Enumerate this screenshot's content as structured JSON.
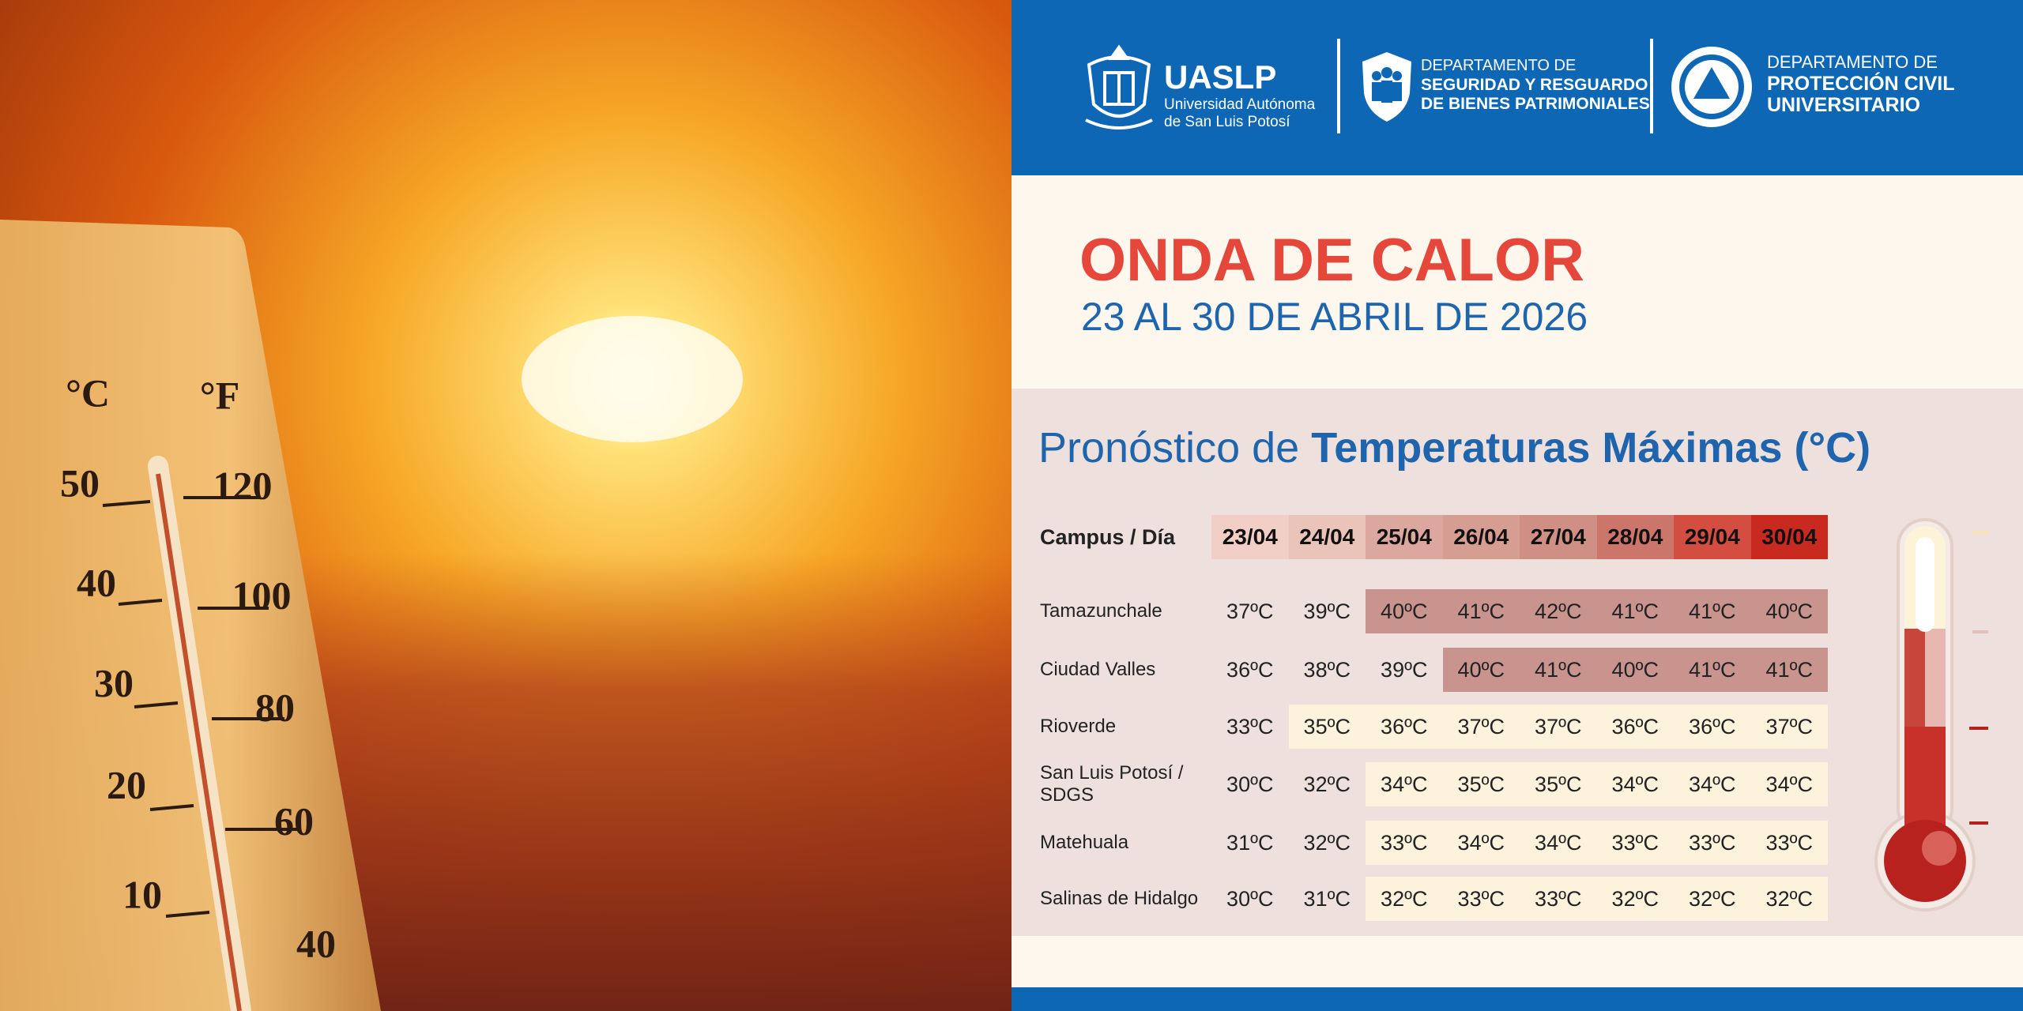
{
  "photo": {
    "thermometer": {
      "celsius_unit": "°C",
      "fahrenheit_unit": "°F",
      "celsius_labels": [
        "50",
        "40",
        "30",
        "20",
        "10"
      ],
      "fahrenheit_labels": [
        "120",
        "100",
        "80",
        "60",
        "40"
      ]
    }
  },
  "header": {
    "uaslp": {
      "name": "UASLP",
      "line1": "Universidad Autónoma",
      "line2": "de San Luis Potosí"
    },
    "seguridad": {
      "line1": "DEPARTAMENTO DE",
      "line2": "SEGURIDAD Y RESGUARDO",
      "line3": "DE BIENES PATRIMONIALES"
    },
    "proteccion": {
      "line1": "DEPARTAMENTO DE",
      "line2": "PROTECCIÓN CIVIL",
      "line3": "UNIVERSITARIO"
    }
  },
  "title": "ONDA DE CALOR",
  "subtitle": "23 AL 30 DE ABRIL DE 2026",
  "table": {
    "heading_plain": "Pronóstico de",
    "heading_bold": "Temperaturas Máximas (°C)",
    "corner": "Campus / Día",
    "columns": [
      "23/04",
      "24/04",
      "25/04",
      "26/04",
      "27/04",
      "28/04",
      "29/04",
      "30/04"
    ],
    "column_colors": [
      "#f1cfc6",
      "#eac3b9",
      "#dca79e",
      "#d69d93",
      "#cf8f85",
      "#cb756b",
      "#d44d41",
      "#c92a20"
    ],
    "rows": [
      {
        "campus": "Tamazunchale",
        "cells": [
          "37ºC",
          "39ºC",
          "40ºC",
          "41ºC",
          "42ºC",
          "41ºC",
          "41ºC",
          "40ºC"
        ],
        "colors": [
          null,
          null,
          "#c8948d",
          "#c8948d",
          "#c8948d",
          "#c8948d",
          "#c8948d",
          "#c8948d"
        ]
      },
      {
        "campus": "Ciudad Valles",
        "cells": [
          "36ºC",
          "38ºC",
          "39ºC",
          "40ºC",
          "41ºC",
          "40ºC",
          "41ºC",
          "41ºC"
        ],
        "colors": [
          null,
          null,
          null,
          "#c8948d",
          "#c8948d",
          "#c8948d",
          "#c8948d",
          "#c8948d"
        ]
      },
      {
        "campus": "Rioverde",
        "cells": [
          "33ºC",
          "35ºC",
          "36ºC",
          "37ºC",
          "37ºC",
          "36ºC",
          "36ºC",
          "37ºC"
        ],
        "colors": [
          null,
          "#fdf2dc",
          "#fdf2dc",
          "#fdf2dc",
          "#fdf2dc",
          "#fdf2dc",
          "#fdf2dc",
          "#fdf2dc"
        ]
      },
      {
        "campus": "San Luis Potosí / SDGS",
        "cells": [
          "30ºC",
          "32ºC",
          "34ºC",
          "35ºC",
          "35ºC",
          "34ºC",
          "34ºC",
          "34ºC"
        ],
        "colors": [
          null,
          null,
          "#fdf2dc",
          "#fdf2dc",
          "#fdf2dc",
          "#fdf2dc",
          "#fdf2dc",
          "#fdf2dc"
        ]
      },
      {
        "campus": "Matehuala",
        "cells": [
          "31ºC",
          "32ºC",
          "33ºC",
          "34ºC",
          "34ºC",
          "33ºC",
          "33ºC",
          "33ºC"
        ],
        "colors": [
          null,
          null,
          "#fdf2dc",
          "#fdf2dc",
          "#fdf2dc",
          "#fdf2dc",
          "#fdf2dc",
          "#fdf2dc"
        ]
      },
      {
        "campus": "Salinas de Hidalgo",
        "cells": [
          "30ºC",
          "31ºC",
          "32ºC",
          "33ºC",
          "33ºC",
          "32ºC",
          "32ºC",
          "32ºC"
        ],
        "colors": [
          null,
          null,
          "#fdf2dc",
          "#fdf2dc",
          "#fdf2dc",
          "#fdf2dc",
          "#fdf2dc",
          "#fdf2dc"
        ]
      }
    ]
  }
}
